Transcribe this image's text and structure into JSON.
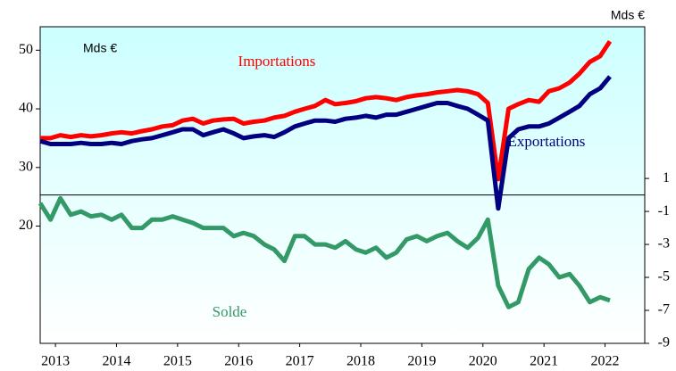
{
  "chart_data": {
    "type": "line",
    "y_label": "Mds €",
    "y2_label": "Mds €",
    "x": [
      2012.75,
      2012.92,
      2013.08,
      2013.25,
      2013.42,
      2013.58,
      2013.75,
      2013.92,
      2014.08,
      2014.25,
      2014.42,
      2014.58,
      2014.75,
      2014.92,
      2015.08,
      2015.25,
      2015.42,
      2015.58,
      2015.75,
      2015.92,
      2016.08,
      2016.25,
      2016.42,
      2016.58,
      2016.75,
      2016.92,
      2017.08,
      2017.25,
      2017.42,
      2017.58,
      2017.75,
      2017.92,
      2018.08,
      2018.25,
      2018.42,
      2018.58,
      2018.75,
      2018.92,
      2019.08,
      2019.25,
      2019.42,
      2019.58,
      2019.75,
      2019.92,
      2020.08,
      2020.25,
      2020.42,
      2020.58,
      2020.75,
      2020.92,
      2021.08,
      2021.25,
      2021.42,
      2021.58,
      2021.75,
      2021.92,
      2022.08
    ],
    "series": [
      {
        "name": "Importations",
        "color": "#ff0000",
        "axis": "y",
        "values": [
          35,
          35,
          35.5,
          35.2,
          35.5,
          35.3,
          35.5,
          35.8,
          36,
          35.8,
          36.2,
          36.5,
          37,
          37.2,
          38,
          38.3,
          37.5,
          38,
          38.2,
          38.3,
          37.5,
          37.8,
          38,
          38.5,
          38.8,
          39.5,
          40,
          40.5,
          41.5,
          40.8,
          41,
          41.3,
          41.8,
          42,
          41.8,
          41.5,
          42,
          42.3,
          42.5,
          42.8,
          43,
          43.2,
          43,
          42.5,
          41,
          28,
          40,
          40.8,
          41.5,
          41.2,
          43,
          43.5,
          44.5,
          46,
          48,
          49,
          51.5
        ]
      },
      {
        "name": "Exportations",
        "color": "#000080",
        "axis": "y",
        "values": [
          34.5,
          34,
          34,
          34,
          34.2,
          34,
          34,
          34.2,
          34,
          34.5,
          34.8,
          35,
          35.5,
          36,
          36.5,
          36.5,
          35.5,
          36,
          36.5,
          35.8,
          35,
          35.3,
          35.5,
          35.2,
          36,
          37,
          37.5,
          38,
          38,
          37.8,
          38.3,
          38.5,
          38.8,
          38.5,
          39,
          39,
          39.5,
          40,
          40.5,
          41,
          41,
          40.5,
          40,
          39,
          38,
          23,
          35,
          36.5,
          37,
          37,
          37.5,
          38.5,
          39.5,
          40.5,
          42.5,
          43.5,
          45.5
        ]
      },
      {
        "name": "Solde",
        "color": "#339966",
        "axis": "y2",
        "values": [
          -0.5,
          -1.5,
          -0.2,
          -1.2,
          -1,
          -1.3,
          -1.2,
          -1.5,
          -1.2,
          -2,
          -2,
          -1.5,
          -1.5,
          -1.3,
          -1.5,
          -1.7,
          -2,
          -2,
          -2,
          -2.5,
          -2.3,
          -2.5,
          -3,
          -3.3,
          -4,
          -2.5,
          -2.5,
          -3,
          -3,
          -3.2,
          -2.8,
          -3.3,
          -3.5,
          -3.2,
          -3.8,
          -3.5,
          -2.7,
          -2.5,
          -2.8,
          -2.5,
          -2.3,
          -2.8,
          -3.2,
          -2.6,
          -1.5,
          -5.5,
          -6.8,
          -6.5,
          -4.5,
          -3.8,
          -4.2,
          -5,
          -4.8,
          -5.5,
          -6.5,
          -6.2,
          -6.4
        ]
      }
    ],
    "xlim": [
      2012.75,
      2022.65
    ],
    "xticks": [
      2013,
      2014,
      2015,
      2016,
      2017,
      2018,
      2019,
      2020,
      2021,
      2022
    ],
    "ylim": [
      0,
      54
    ],
    "yticks": [
      20,
      30,
      40,
      50
    ],
    "y2lim": [
      -9,
      10.2
    ],
    "y2ticks": [
      1,
      -1,
      -3,
      -5,
      -7,
      -9
    ]
  }
}
